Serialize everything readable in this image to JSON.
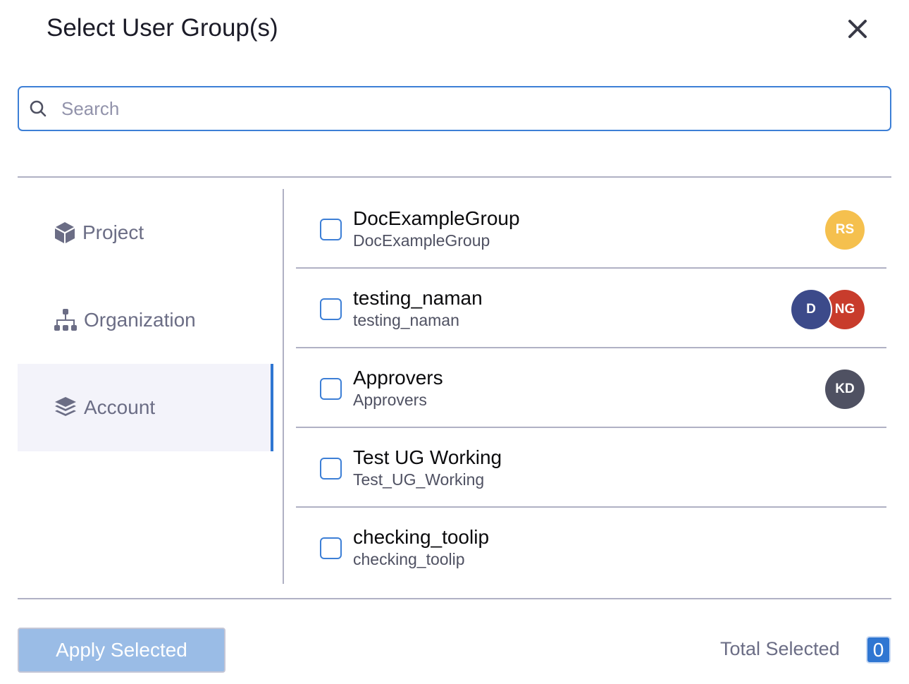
{
  "dialog": {
    "title": "Select User Group(s)",
    "close_icon": "close-icon"
  },
  "search": {
    "placeholder": "Search",
    "value": ""
  },
  "sidebar": {
    "items": [
      {
        "label": "Project",
        "icon": "cube-icon",
        "selected": false
      },
      {
        "label": "Organization",
        "icon": "hierarchy-icon",
        "selected": false
      },
      {
        "label": "Account",
        "icon": "layers-icon",
        "selected": true
      }
    ]
  },
  "groups": [
    {
      "name": "DocExampleGroup",
      "id": "DocExampleGroup",
      "checked": false,
      "avatars": [
        {
          "initials": "RS",
          "color": "#f5c04e"
        }
      ]
    },
    {
      "name": "testing_naman",
      "id": "testing_naman",
      "checked": false,
      "avatars": [
        {
          "initials": "D",
          "color": "#3c4a8a"
        },
        {
          "initials": "NG",
          "color": "#c83c2c"
        }
      ]
    },
    {
      "name": "Approvers",
      "id": "Approvers",
      "checked": false,
      "avatars": [
        {
          "initials": "KD",
          "color": "#4f5162"
        }
      ]
    },
    {
      "name": "Test UG Working",
      "id": "Test_UG_Working",
      "checked": false,
      "avatars": []
    },
    {
      "name": "checking_toolip",
      "id": "checking_toolip",
      "checked": false,
      "avatars": []
    }
  ],
  "footer": {
    "apply_label": "Apply Selected",
    "total_label": "Total Selected",
    "total_count": "0"
  },
  "colors": {
    "accent": "#2f76d2",
    "apply_disabled": "#9abce6"
  }
}
